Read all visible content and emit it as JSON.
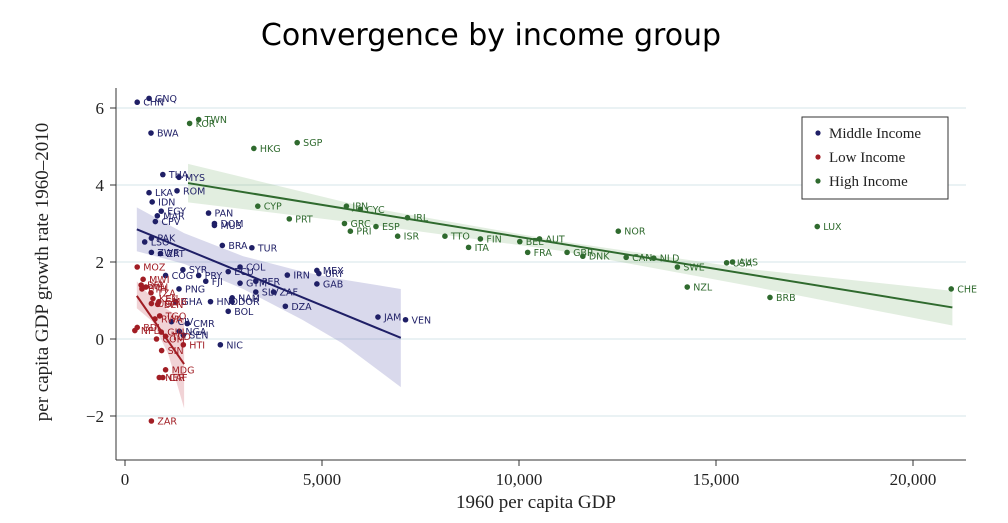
{
  "chart_data": {
    "type": "scatter",
    "title": "Convergence by income group",
    "xlabel": "1960 per capita GDP",
    "ylabel": "per capita GDP growth rate 1960–2010",
    "xlim": [
      -250,
      21400
    ],
    "ylim": [
      -2.6,
      6.6
    ],
    "xticks": [
      0,
      5000,
      10000,
      15000,
      20000
    ],
    "xtick_labels": [
      "0",
      "5,000",
      "10,000",
      "15,000",
      "20,000"
    ],
    "yticks": [
      -2,
      0,
      2,
      4,
      6
    ],
    "ytick_labels": [
      "−2",
      "0",
      "2",
      "4",
      "6"
    ],
    "grid": "horizontal",
    "legend_position": "top-right",
    "colors": {
      "middle": "#1f1f66",
      "low": "#a11d24",
      "high": "#2f6a2e"
    },
    "series": [
      {
        "name": "Middle Income",
        "key": "middle",
        "points": [
          {
            "label": "GNQ",
            "x": 610,
            "y": 6.25
          },
          {
            "label": "CHN",
            "x": 310,
            "y": 6.15
          },
          {
            "label": "BWA",
            "x": 660,
            "y": 5.35
          },
          {
            "label": "THA",
            "x": 960,
            "y": 4.27
          },
          {
            "label": "MYS",
            "x": 1370,
            "y": 4.2
          },
          {
            "label": "ROM",
            "x": 1320,
            "y": 3.85
          },
          {
            "label": "LKA",
            "x": 610,
            "y": 3.8
          },
          {
            "label": "IDN",
            "x": 690,
            "y": 3.56
          },
          {
            "label": "EGY",
            "x": 920,
            "y": 3.32
          },
          {
            "label": "MAR",
            "x": 820,
            "y": 3.2
          },
          {
            "label": "CPV",
            "x": 770,
            "y": 3.05
          },
          {
            "label": "PAN",
            "x": 2120,
            "y": 3.27
          },
          {
            "label": "DOM",
            "x": 2270,
            "y": 3.0
          },
          {
            "label": "MUS",
            "x": 2270,
            "y": 2.95
          },
          {
            "label": "PAK",
            "x": 670,
            "y": 2.62
          },
          {
            "label": "LSO",
            "x": 500,
            "y": 2.52
          },
          {
            "label": "BRA",
            "x": 2470,
            "y": 2.43
          },
          {
            "label": "TUR",
            "x": 3220,
            "y": 2.37
          },
          {
            "label": "ZWE",
            "x": 670,
            "y": 2.25
          },
          {
            "label": "ZRT",
            "x": 900,
            "y": 2.22
          },
          {
            "label": "COL",
            "x": 2920,
            "y": 1.87
          },
          {
            "label": "SYR",
            "x": 1470,
            "y": 1.8
          },
          {
            "label": "ECU",
            "x": 2620,
            "y": 1.75
          },
          {
            "label": "COG",
            "x": 1030,
            "y": 1.65
          },
          {
            "label": "PRY",
            "x": 1870,
            "y": 1.65
          },
          {
            "label": "IRN",
            "x": 4120,
            "y": 1.66
          },
          {
            "label": "MEX",
            "x": 4870,
            "y": 1.78
          },
          {
            "label": "URY",
            "x": 4920,
            "y": 1.7
          },
          {
            "label": "FJI",
            "x": 2050,
            "y": 1.5
          },
          {
            "label": "GTM",
            "x": 2920,
            "y": 1.45
          },
          {
            "label": "PER",
            "x": 3320,
            "y": 1.5
          },
          {
            "label": "GAB",
            "x": 4870,
            "y": 1.43
          },
          {
            "label": "PNG",
            "x": 1370,
            "y": 1.3
          },
          {
            "label": "SLV",
            "x": 3320,
            "y": 1.22
          },
          {
            "label": "ZAF",
            "x": 3770,
            "y": 1.22
          },
          {
            "label": "NAM",
            "x": 2720,
            "y": 1.07
          },
          {
            "label": "GHA",
            "x": 1280,
            "y": 0.97
          },
          {
            "label": "HND",
            "x": 2170,
            "y": 0.97
          },
          {
            "label": "DOR",
            "x": 2720,
            "y": 0.97
          },
          {
            "label": "DZA",
            "x": 4070,
            "y": 0.85
          },
          {
            "label": "BOL",
            "x": 2620,
            "y": 0.72
          },
          {
            "label": "JAM",
            "x": 6420,
            "y": 0.57
          },
          {
            "label": "VEN",
            "x": 7120,
            "y": 0.5
          },
          {
            "label": "CIV",
            "x": 1180,
            "y": 0.45
          },
          {
            "label": "CMR",
            "x": 1580,
            "y": 0.4
          },
          {
            "label": "NGA",
            "x": 1380,
            "y": 0.2
          },
          {
            "label": "SEN",
            "x": 1480,
            "y": 0.1
          },
          {
            "label": "NIC",
            "x": 2420,
            "y": -0.15
          }
        ]
      },
      {
        "name": "Low Income",
        "key": "low",
        "points": [
          {
            "label": "MOZ",
            "x": 310,
            "y": 1.87
          },
          {
            "label": "MWI",
            "x": 460,
            "y": 1.55
          },
          {
            "label": "BFA",
            "x": 410,
            "y": 1.4
          },
          {
            "label": "MLI",
            "x": 530,
            "y": 1.35
          },
          {
            "label": "ETH",
            "x": 430,
            "y": 1.3
          },
          {
            "label": "TZA",
            "x": 660,
            "y": 1.2
          },
          {
            "label": "KEN",
            "x": 710,
            "y": 1.05
          },
          {
            "label": "GMB",
            "x": 860,
            "y": 0.97
          },
          {
            "label": "BEN",
            "x": 830,
            "y": 0.9
          },
          {
            "label": "UGA",
            "x": 670,
            "y": 0.92
          },
          {
            "label": "TGO",
            "x": 880,
            "y": 0.6
          },
          {
            "label": "RWA",
            "x": 760,
            "y": 0.52
          },
          {
            "label": "BDI",
            "x": 310,
            "y": 0.3
          },
          {
            "label": "NPL",
            "x": 250,
            "y": 0.22
          },
          {
            "label": "GIN",
            "x": 920,
            "y": 0.18
          },
          {
            "label": "TCD",
            "x": 1030,
            "y": 0.07
          },
          {
            "label": "COM",
            "x": 800,
            "y": 0.0
          },
          {
            "label": "HTI",
            "x": 1480,
            "y": -0.15
          },
          {
            "label": "SIN",
            "x": 930,
            "y": -0.3
          },
          {
            "label": "MDG",
            "x": 1030,
            "y": -0.8
          },
          {
            "label": "NER",
            "x": 870,
            "y": -1.0
          },
          {
            "label": "CAF",
            "x": 960,
            "y": -1.0
          },
          {
            "label": "ZAR",
            "x": 670,
            "y": -2.13
          }
        ]
      },
      {
        "name": "High Income",
        "key": "high",
        "points": [
          {
            "label": "TWN",
            "x": 1870,
            "y": 5.7
          },
          {
            "label": "KOR",
            "x": 1640,
            "y": 5.6
          },
          {
            "label": "HKG",
            "x": 3270,
            "y": 4.95
          },
          {
            "label": "SGP",
            "x": 4370,
            "y": 5.1
          },
          {
            "label": "CYP",
            "x": 3370,
            "y": 3.45
          },
          {
            "label": "JPN",
            "x": 5620,
            "y": 3.45
          },
          {
            "label": "CYC",
            "x": 5970,
            "y": 3.37
          },
          {
            "label": "PRT",
            "x": 4170,
            "y": 3.12
          },
          {
            "label": "IRL",
            "x": 7170,
            "y": 3.15
          },
          {
            "label": "GRC",
            "x": 5570,
            "y": 3.0
          },
          {
            "label": "ESP",
            "x": 6370,
            "y": 2.92
          },
          {
            "label": "PRI",
            "x": 5720,
            "y": 2.8
          },
          {
            "label": "ISR",
            "x": 6920,
            "y": 2.67
          },
          {
            "label": "NOR",
            "x": 12520,
            "y": 2.8
          },
          {
            "label": "LUX",
            "x": 17570,
            "y": 2.92
          },
          {
            "label": "TTO",
            "x": 8120,
            "y": 2.67
          },
          {
            "label": "FIN",
            "x": 9020,
            "y": 2.6
          },
          {
            "label": "AUT",
            "x": 10520,
            "y": 2.6
          },
          {
            "label": "BEL",
            "x": 10020,
            "y": 2.53
          },
          {
            "label": "ITA",
            "x": 8720,
            "y": 2.38
          },
          {
            "label": "FRA",
            "x": 10220,
            "y": 2.25
          },
          {
            "label": "GBR",
            "x": 11220,
            "y": 2.25
          },
          {
            "label": "DNK",
            "x": 11620,
            "y": 2.15
          },
          {
            "label": "CAN",
            "x": 12720,
            "y": 2.12
          },
          {
            "label": "NLD",
            "x": 13420,
            "y": 2.1
          },
          {
            "label": "USA",
            "x": 15270,
            "y": 1.98
          },
          {
            "label": "AUS",
            "x": 15420,
            "y": 2.0
          },
          {
            "label": "CHE",
            "x": 20970,
            "y": 1.3
          },
          {
            "label": "SWE",
            "x": 14020,
            "y": 1.87
          },
          {
            "label": "NZL",
            "x": 14270,
            "y": 1.35
          },
          {
            "label": "BRB",
            "x": 16370,
            "y": 1.08
          }
        ]
      }
    ],
    "fits": [
      {
        "key": "middle",
        "x": [
          300,
          7000
        ],
        "y": [
          2.85,
          0.03
        ],
        "band": [
          [
            300,
            3.42,
            2.28
          ],
          [
            1500,
            2.75,
            1.95
          ],
          [
            3000,
            2.15,
            1.3
          ],
          [
            4500,
            1.75,
            0.5
          ],
          [
            5500,
            1.55,
            -0.1
          ],
          [
            7000,
            1.3,
            -1.25
          ]
        ]
      },
      {
        "key": "low",
        "x": [
          300,
          1500
        ],
        "y": [
          1.12,
          -0.65
        ],
        "band": [
          [
            300,
            1.5,
            0.8
          ],
          [
            700,
            1.05,
            0.45
          ],
          [
            1100,
            0.75,
            -0.4
          ],
          [
            1500,
            0.5,
            -1.8
          ]
        ]
      },
      {
        "key": "high",
        "x": [
          1600,
          21000
        ],
        "y": [
          4.05,
          0.82
        ],
        "band": [
          [
            1600,
            4.55,
            3.55
          ],
          [
            6000,
            3.45,
            3.0
          ],
          [
            11000,
            2.55,
            2.3
          ],
          [
            16000,
            1.8,
            1.35
          ],
          [
            21000,
            1.25,
            0.35
          ]
        ]
      }
    ]
  }
}
